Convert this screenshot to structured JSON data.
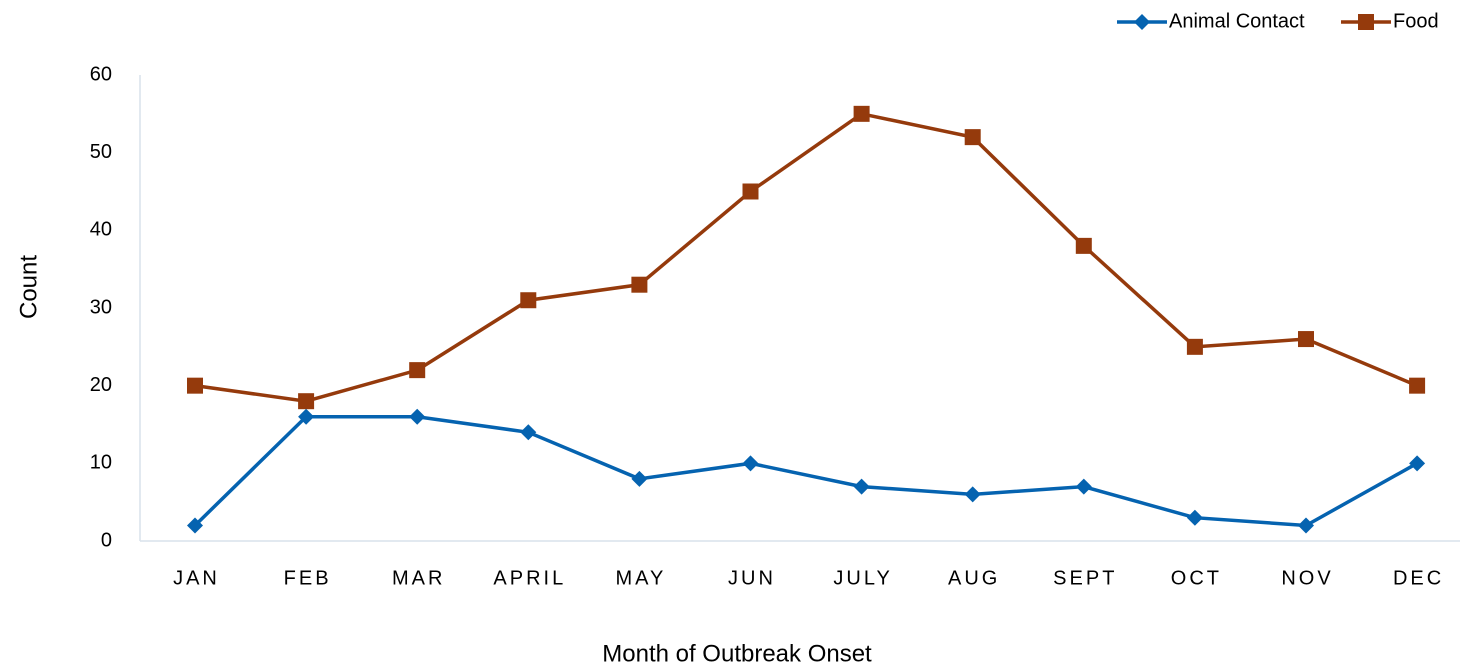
{
  "chart_data": {
    "type": "line",
    "x_label": "Month of Outbreak Onset",
    "y_label": "Count",
    "categories": [
      "JAN",
      "FEB",
      "MAR",
      "APRIL",
      "MAY",
      "JUN",
      "JULY",
      "AUG",
      "SEPT",
      "OCT",
      "NOV",
      "DEC"
    ],
    "series": [
      {
        "name": "Animal Contact",
        "color": "#0563b0",
        "marker": "diamond",
        "values": [
          2,
          16,
          16,
          14,
          8,
          10,
          7,
          6,
          7,
          3,
          2,
          10
        ]
      },
      {
        "name": "Food",
        "color": "#953a0c",
        "marker": "square",
        "values": [
          20,
          18,
          22,
          31,
          33,
          45,
          55,
          52,
          38,
          25,
          26,
          20
        ]
      }
    ],
    "ylim": [
      0,
      60
    ],
    "yticks": [
      0,
      10,
      20,
      30,
      40,
      50,
      60
    ],
    "grid": false,
    "legend": "top-right"
  }
}
